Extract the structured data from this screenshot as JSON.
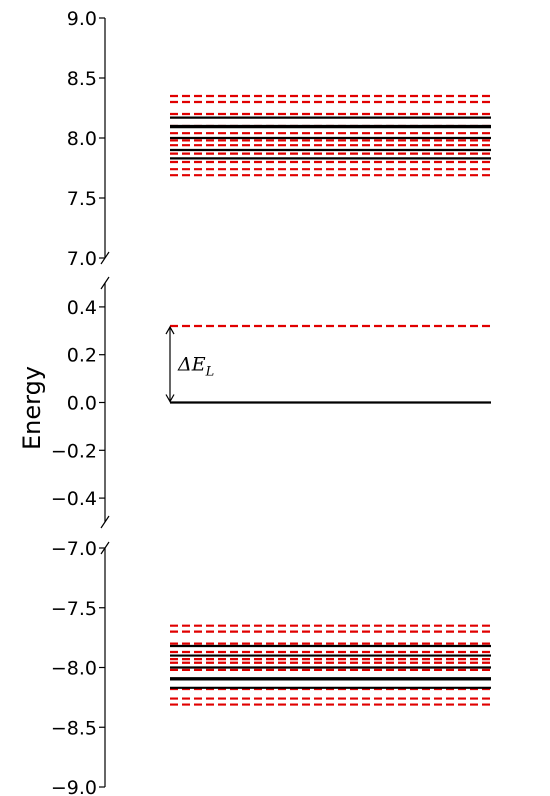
{
  "chart_data": {
    "type": "line",
    "ylabel": "Energy",
    "xlabel": "",
    "title": "",
    "grid": false,
    "legend": "none",
    "broken_axis": true,
    "colors": {
      "solid": "#000000",
      "dashed": "#e00000"
    },
    "panels": [
      {
        "name": "top",
        "ylim": [
          7.0,
          9.0
        ],
        "ticks": [
          "9.0",
          "8.5",
          "8.0",
          "7.5",
          "7.0"
        ],
        "tick_values": [
          9.0,
          8.5,
          8.0,
          7.5,
          7.0
        ],
        "solid_levels": [
          8.17,
          8.1,
          8.09,
          8.0,
          7.9,
          7.83
        ],
        "dashed_levels": [
          8.35,
          8.3,
          8.2,
          8.1,
          8.04,
          7.98,
          7.94,
          7.87,
          7.8,
          7.74,
          7.69
        ]
      },
      {
        "name": "middle",
        "ylim": [
          -0.5,
          0.5
        ],
        "ticks": [
          "0.4",
          "0.2",
          "0.0",
          "−0.2",
          "−0.4"
        ],
        "tick_values": [
          0.4,
          0.2,
          0.0,
          -0.2,
          -0.4
        ],
        "solid_levels": [
          0.0
        ],
        "dashed_levels": [
          0.32
        ]
      },
      {
        "name": "bottom",
        "ylim": [
          -9.0,
          -7.0
        ],
        "ticks": [
          "−7.0",
          "−7.5",
          "−8.0",
          "−8.5",
          "−9.0"
        ],
        "tick_values": [
          -7.0,
          -7.5,
          -8.0,
          -8.5,
          -9.0
        ],
        "solid_levels": [
          -7.82,
          -7.9,
          -8.0,
          -8.09,
          -8.1,
          -8.17
        ],
        "dashed_levels": [
          -7.65,
          -7.7,
          -7.8,
          -7.87,
          -7.93,
          -7.96,
          -8.02,
          -8.1,
          -8.18,
          -8.26,
          -8.31
        ]
      }
    ],
    "annotation": {
      "text": "ΔE",
      "subscript": "L",
      "from": 0.0,
      "to": 0.32
    }
  }
}
